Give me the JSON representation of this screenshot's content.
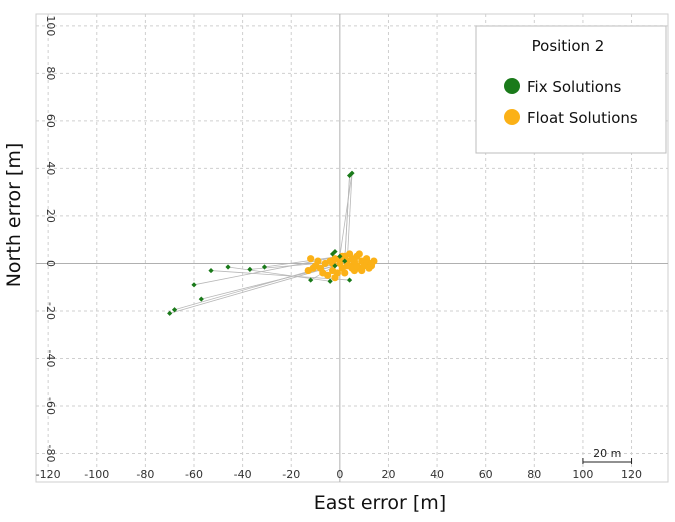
{
  "chart_data": {
    "type": "scatter",
    "title": "",
    "xlabel": "East error [m]",
    "ylabel": "North error [m]",
    "xlim": [
      -125,
      135
    ],
    "ylim": [
      -92,
      105
    ],
    "grid": true,
    "x_ticks": [
      -120,
      -100,
      -80,
      -60,
      -40,
      -20,
      0,
      20,
      40,
      60,
      80,
      100,
      120
    ],
    "y_ticks": [
      -80,
      -60,
      -40,
      -20,
      0,
      20,
      40,
      60,
      80,
      100
    ],
    "legend": {
      "title": "Position 2",
      "position": "top-right"
    },
    "scale_bar": {
      "label": "20 m",
      "length": 20
    },
    "track_line_color": "#b8b8b8",
    "series": [
      {
        "name": "Fix Solutions",
        "color": "#1a7a1a",
        "points": [
          [
            -70,
            -21
          ],
          [
            -68,
            -19.5
          ],
          [
            -60,
            -9
          ],
          [
            -57,
            -15
          ],
          [
            -53,
            -3
          ],
          [
            -46,
            -1.5
          ],
          [
            -37,
            -2.5
          ],
          [
            -31,
            -1.5
          ],
          [
            -12,
            -7
          ],
          [
            -3,
            4
          ],
          [
            -2,
            5
          ],
          [
            -4,
            -7.5
          ],
          [
            -2,
            -1
          ],
          [
            4,
            -7
          ],
          [
            4,
            37
          ],
          [
            5,
            38
          ],
          [
            2,
            1
          ],
          [
            0,
            3
          ]
        ]
      },
      {
        "name": "Float Solutions",
        "color": "#fbb117",
        "points": [
          [
            -12,
            2
          ],
          [
            -10,
            -1
          ],
          [
            -13,
            -3
          ],
          [
            -8,
            -2
          ],
          [
            -6,
            0
          ],
          [
            -4,
            1
          ],
          [
            -3,
            -3
          ],
          [
            -2,
            2
          ],
          [
            0,
            1
          ],
          [
            1,
            -2
          ],
          [
            2,
            3
          ],
          [
            3,
            1
          ],
          [
            4,
            -1
          ],
          [
            5,
            2
          ],
          [
            6,
            0
          ],
          [
            7,
            3
          ],
          [
            8,
            -2
          ],
          [
            9,
            1
          ],
          [
            10,
            -1
          ],
          [
            11,
            2
          ],
          [
            12,
            0
          ],
          [
            13,
            -1
          ],
          [
            14,
            1
          ],
          [
            -5,
            -5
          ],
          [
            -1,
            -4
          ],
          [
            2,
            -4
          ],
          [
            6,
            -3
          ],
          [
            8,
            4
          ],
          [
            4,
            4
          ],
          [
            0,
            0
          ],
          [
            -9,
            1
          ],
          [
            -7,
            -4
          ],
          [
            3,
            -1
          ],
          [
            10,
            0
          ],
          [
            12,
            -2
          ],
          [
            -2,
            -6
          ],
          [
            5,
            -2
          ],
          [
            7,
            -1
          ],
          [
            9,
            -3
          ],
          [
            11,
            1
          ],
          [
            13,
            0
          ],
          [
            -11,
            -2
          ],
          [
            1,
            3
          ],
          [
            -3,
            0
          ],
          [
            6,
            1
          ]
        ]
      }
    ]
  }
}
